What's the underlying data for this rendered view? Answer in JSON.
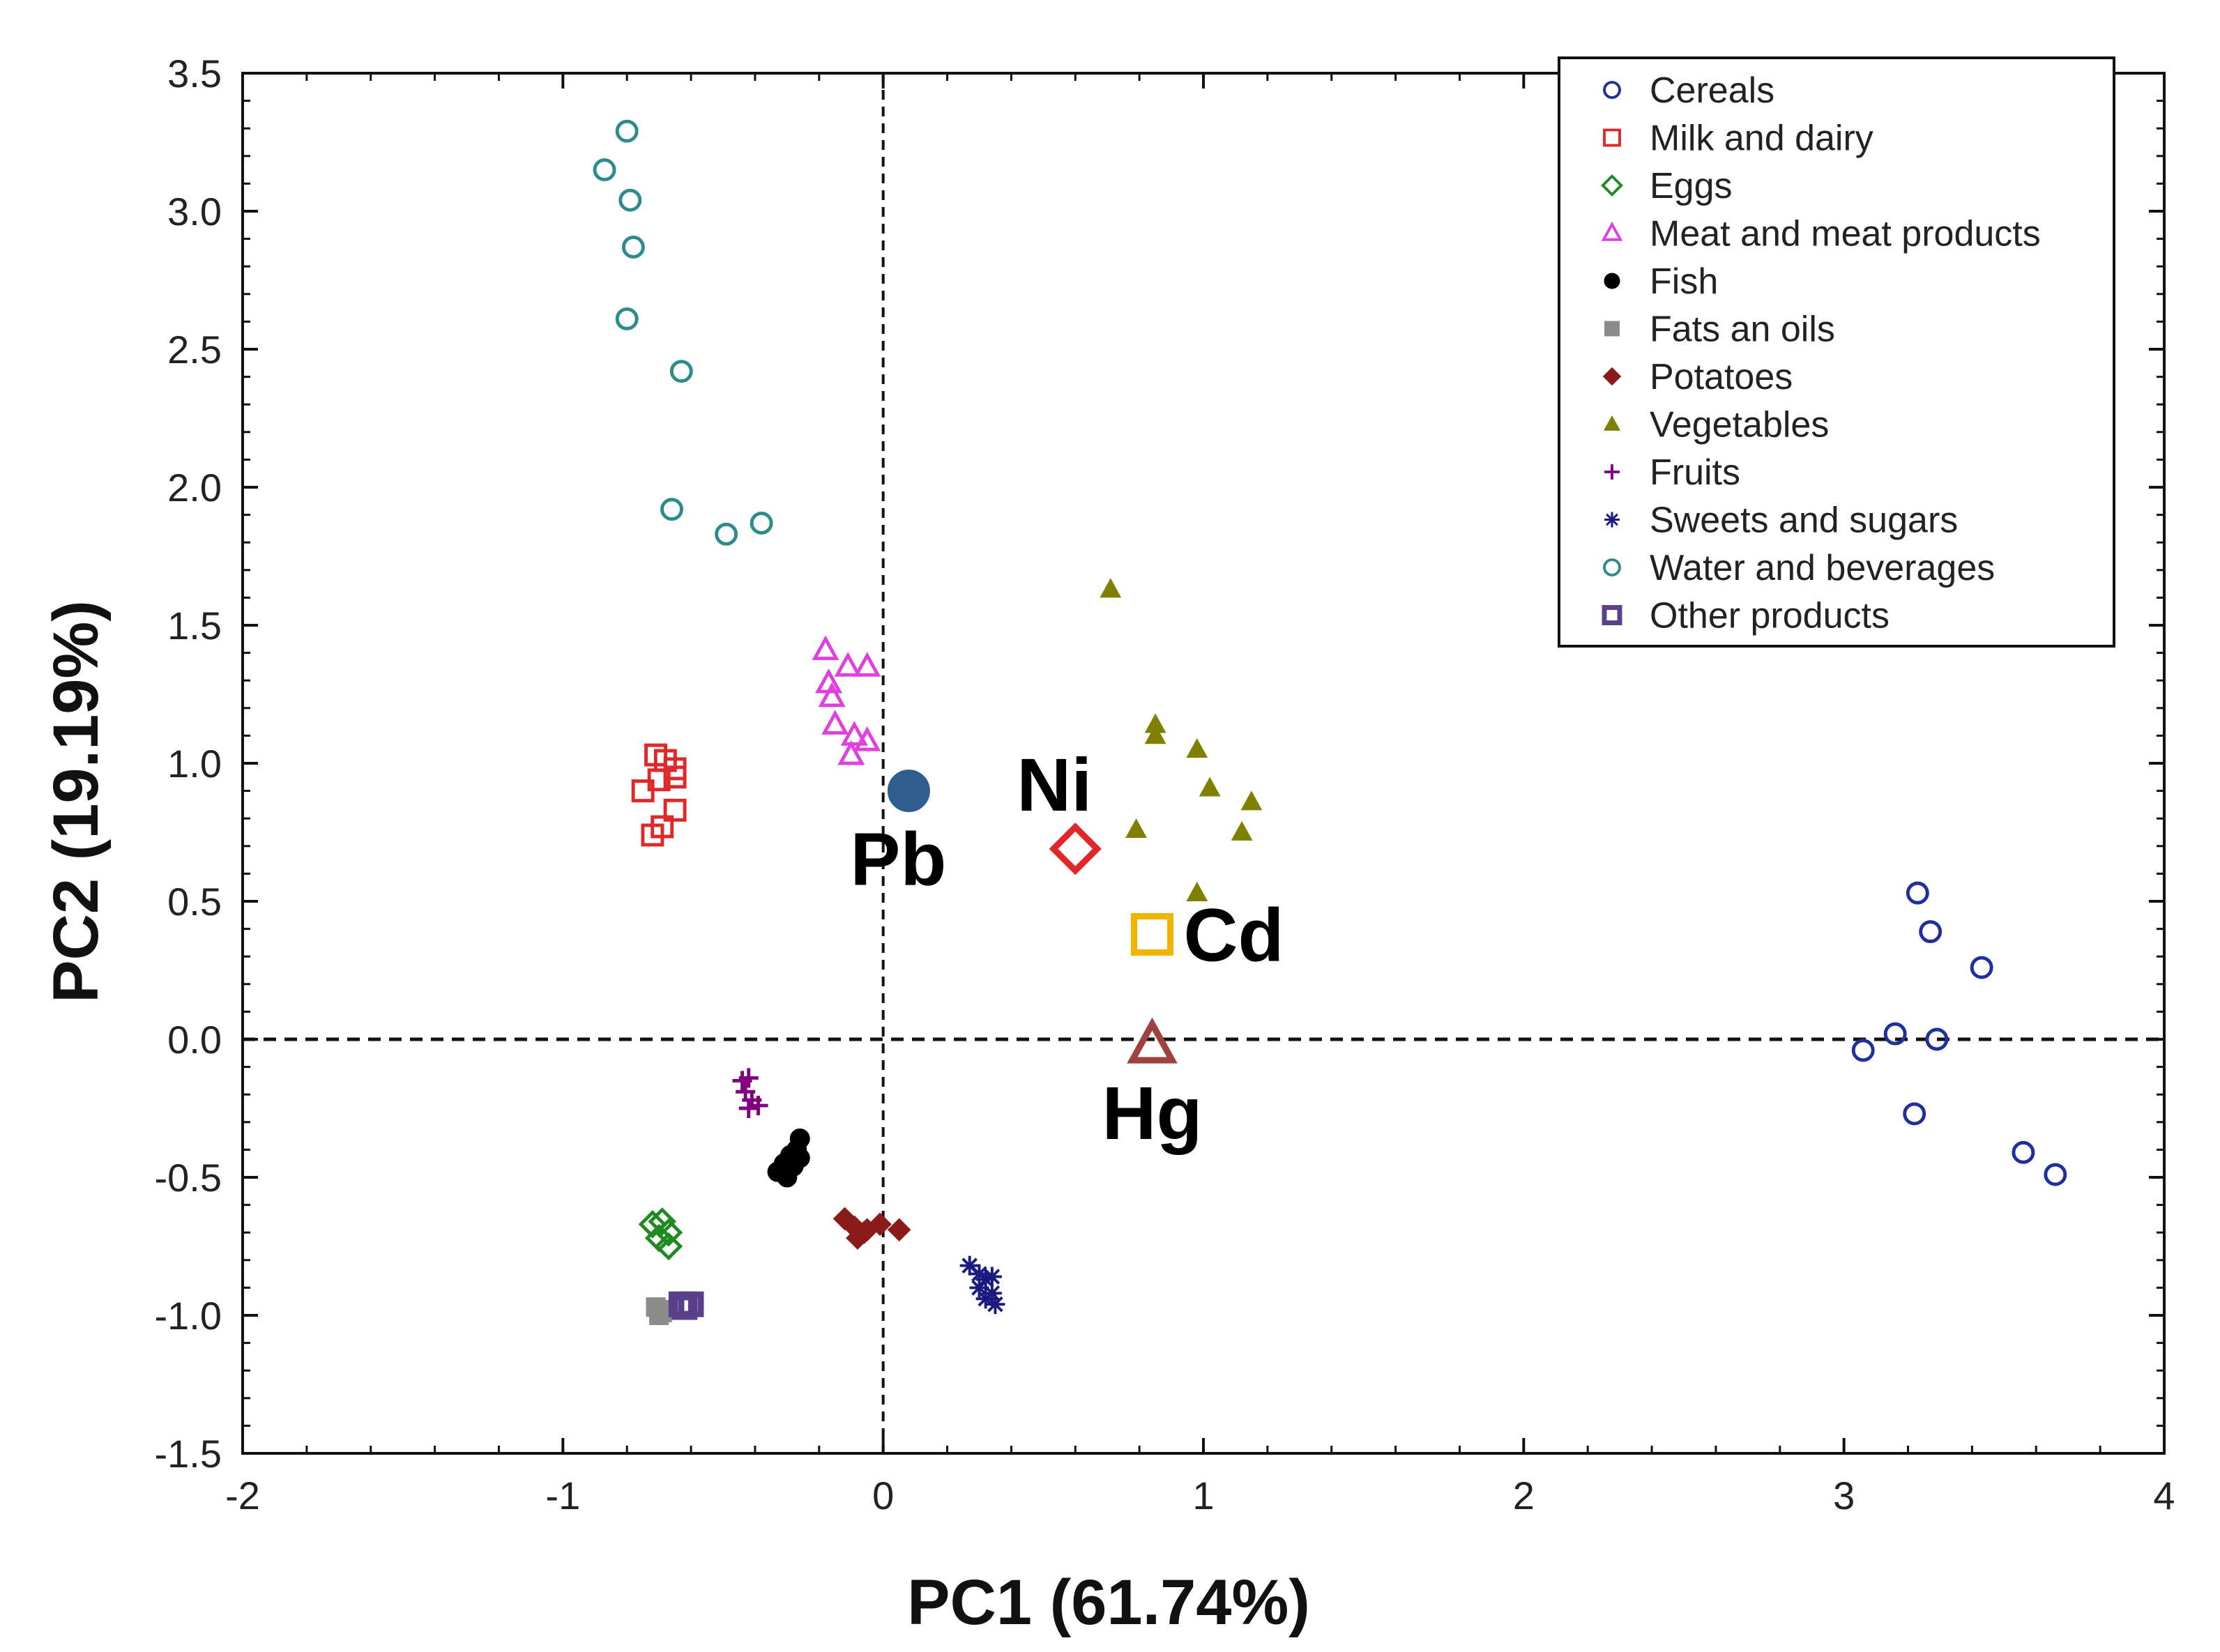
{
  "chart_data": {
    "type": "scatter",
    "title": "",
    "xlabel": "PC1 (61.74%)",
    "ylabel": "PC2 (19.19%)",
    "xlim": [
      -2,
      4
    ],
    "ylim": [
      -1.5,
      3.5
    ],
    "xticks": [
      -2,
      -1,
      0,
      1,
      2,
      3,
      4
    ],
    "xtick_labels": [
      "-2",
      "-1",
      "0",
      "1",
      "2",
      "3",
      "4"
    ],
    "yticks": [
      -1.5,
      -1.0,
      -0.5,
      0.0,
      0.5,
      1.0,
      1.5,
      2.0,
      2.5,
      3.0,
      3.5
    ],
    "ytick_labels": [
      "-1.5",
      "-1.0",
      "-0.5",
      "0.0",
      "0.5",
      "1.0",
      "1.5",
      "2.0",
      "2.5",
      "3.0",
      "3.5"
    ],
    "reference_lines": {
      "x": 0,
      "y": 0,
      "style": "dashed"
    },
    "legend_position": "top-right",
    "series": [
      {
        "name": "Cereals",
        "marker": "circle-open",
        "color": "#1f2f9e",
        "points": [
          [
            3.23,
            0.53
          ],
          [
            3.27,
            0.39
          ],
          [
            3.43,
            0.26
          ],
          [
            3.06,
            -0.04
          ],
          [
            3.16,
            0.02
          ],
          [
            3.29,
            0.0
          ],
          [
            3.22,
            -0.27
          ],
          [
            3.56,
            -0.41
          ],
          [
            3.66,
            -0.49
          ]
        ]
      },
      {
        "name": "Milk and dairy",
        "marker": "square-open",
        "color": "#e0282a",
        "points": [
          [
            -0.71,
            1.03
          ],
          [
            -0.68,
            1.01
          ],
          [
            -0.65,
            0.98
          ],
          [
            -0.7,
            0.94
          ],
          [
            -0.65,
            0.95
          ],
          [
            -0.75,
            0.9
          ],
          [
            -0.65,
            0.83
          ],
          [
            -0.69,
            0.77
          ],
          [
            -0.72,
            0.74
          ]
        ]
      },
      {
        "name": "Eggs",
        "marker": "diamond-open",
        "color": "#1f8a1f",
        "points": [
          [
            -0.72,
            -0.67
          ],
          [
            -0.69,
            -0.66
          ],
          [
            -0.67,
            -0.7
          ],
          [
            -0.7,
            -0.72
          ],
          [
            -0.67,
            -0.75
          ]
        ]
      },
      {
        "name": "Meat and meat products",
        "marker": "triangle-open",
        "color": "#e040e0",
        "points": [
          [
            -0.18,
            1.41
          ],
          [
            -0.11,
            1.35
          ],
          [
            -0.05,
            1.35
          ],
          [
            -0.17,
            1.29
          ],
          [
            -0.16,
            1.24
          ],
          [
            -0.15,
            1.14
          ],
          [
            -0.09,
            1.1
          ],
          [
            -0.05,
            1.08
          ],
          [
            -0.1,
            1.03
          ]
        ]
      },
      {
        "name": "Fish",
        "marker": "circle-filled",
        "color": "#000000",
        "points": [
          [
            -0.26,
            -0.36
          ],
          [
            -0.27,
            -0.4
          ],
          [
            -0.29,
            -0.42
          ],
          [
            -0.26,
            -0.43
          ],
          [
            -0.31,
            -0.45
          ],
          [
            -0.28,
            -0.46
          ],
          [
            -0.33,
            -0.48
          ],
          [
            -0.3,
            -0.5
          ]
        ]
      },
      {
        "name": "Fats an oils",
        "marker": "square-filled",
        "color": "#8c8c8c",
        "points": [
          [
            -0.71,
            -0.97
          ],
          [
            -0.69,
            -0.99
          ],
          [
            -0.7,
            -1.0
          ],
          [
            -0.68,
            -0.98
          ]
        ]
      },
      {
        "name": "Potatoes",
        "marker": "diamond-filled",
        "color": "#8b1a1a",
        "points": [
          [
            -0.12,
            -0.65
          ],
          [
            -0.09,
            -0.68
          ],
          [
            -0.05,
            -0.69
          ],
          [
            -0.01,
            -0.67
          ],
          [
            0.05,
            -0.69
          ],
          [
            -0.08,
            -0.72
          ],
          [
            -0.06,
            -0.7
          ]
        ]
      },
      {
        "name": "Vegetables",
        "marker": "triangle-filled",
        "color": "#808000",
        "points": [
          [
            0.71,
            1.63
          ],
          [
            0.85,
            1.14
          ],
          [
            0.85,
            1.1
          ],
          [
            0.98,
            1.05
          ],
          [
            1.02,
            0.91
          ],
          [
            1.15,
            0.86
          ],
          [
            0.79,
            0.76
          ],
          [
            1.12,
            0.75
          ],
          [
            0.98,
            0.53
          ]
        ]
      },
      {
        "name": "Fruits",
        "marker": "plus",
        "color": "#800080",
        "points": [
          [
            -0.44,
            -0.15
          ],
          [
            -0.42,
            -0.14
          ],
          [
            -0.43,
            -0.19
          ],
          [
            -0.41,
            -0.22
          ],
          [
            -0.42,
            -0.25
          ],
          [
            -0.39,
            -0.24
          ]
        ]
      },
      {
        "name": "Sweets and sugars",
        "marker": "asterisk",
        "color": "#1a1a80",
        "points": [
          [
            0.27,
            -0.82
          ],
          [
            0.3,
            -0.85
          ],
          [
            0.32,
            -0.87
          ],
          [
            0.34,
            -0.86
          ],
          [
            0.3,
            -0.9
          ],
          [
            0.34,
            -0.92
          ],
          [
            0.32,
            -0.94
          ],
          [
            0.35,
            -0.96
          ]
        ]
      },
      {
        "name": "Water and beverages",
        "marker": "circle-open",
        "color": "#2e8b8b",
        "points": [
          [
            -0.8,
            3.29
          ],
          [
            -0.87,
            3.15
          ],
          [
            -0.79,
            3.04
          ],
          [
            -0.78,
            2.87
          ],
          [
            -0.8,
            2.61
          ],
          [
            -0.63,
            2.42
          ],
          [
            -0.66,
            1.92
          ],
          [
            -0.49,
            1.83
          ],
          [
            -0.38,
            1.87
          ]
        ]
      },
      {
        "name": "Other products",
        "marker": "square-open-bold",
        "color": "#5a3f8a",
        "points": [
          [
            -0.63,
            -0.96
          ],
          [
            -0.6,
            -0.96
          ],
          [
            -0.62,
            -0.97
          ]
        ]
      }
    ],
    "loadings": [
      {
        "label": "Pb",
        "marker": "circle-filled",
        "color": "#2f5e8e",
        "x": 0.08,
        "y": 0.9,
        "label_position": "below"
      },
      {
        "label": "Ni",
        "marker": "diamond-open",
        "color": "#e0282a",
        "x": 0.6,
        "y": 0.69,
        "label_position": "above-left"
      },
      {
        "label": "Cd",
        "marker": "square-open",
        "color": "#f0b400",
        "x": 0.84,
        "y": 0.38,
        "label_position": "right"
      },
      {
        "label": "Hg",
        "marker": "triangle-open",
        "color": "#a0403f",
        "x": 0.84,
        "y": -0.02,
        "label_position": "below"
      }
    ]
  }
}
